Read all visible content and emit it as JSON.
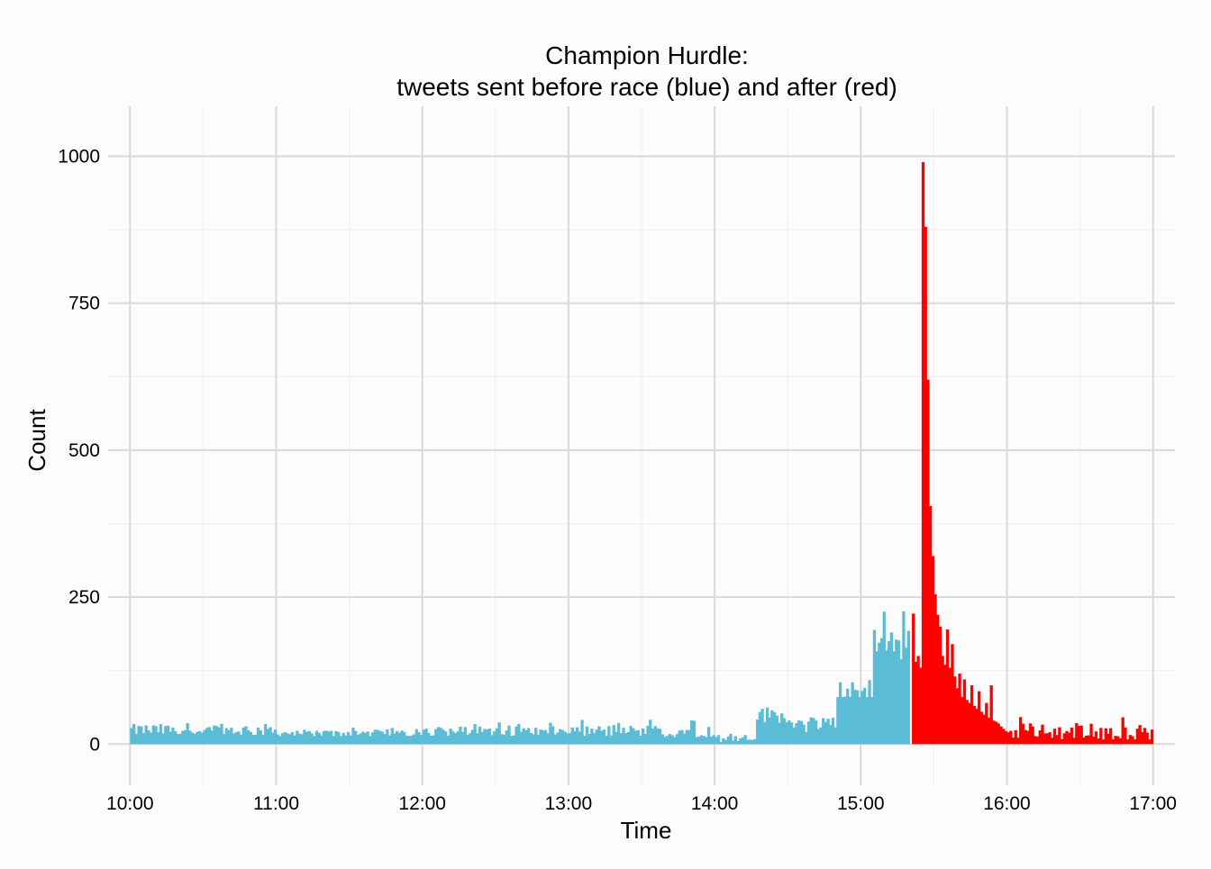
{
  "chart_data": {
    "type": "bar",
    "title_line1": "Champion Hurdle:",
    "title_line2": "tweets sent before race (blue) and after (red)",
    "xlabel": "Time",
    "ylabel": "Count",
    "xlim": [
      "09:51",
      "17:09"
    ],
    "ylim": [
      -70,
      1085
    ],
    "x_ticks": [
      "10:00",
      "11:00",
      "12:00",
      "13:00",
      "14:00",
      "15:00",
      "16:00",
      "17:00"
    ],
    "y_ticks": [
      0,
      250,
      500,
      750,
      1000
    ],
    "grid": true,
    "bin_minutes": 1,
    "colors": {
      "before": "#5bbcd6",
      "after": "#ff0000",
      "grid_major": "#d9d9d9",
      "grid_minor": "#efefef",
      "background": "#fcfcfc"
    },
    "series": [
      {
        "name": "before",
        "start_time": "10:00",
        "end_time": "15:20",
        "segments": [
          {
            "from": "10:00",
            "to": "11:00",
            "min": 15,
            "max": 45,
            "mean": 24
          },
          {
            "from": "11:00",
            "to": "12:00",
            "min": 12,
            "max": 28,
            "mean": 19
          },
          {
            "from": "12:00",
            "to": "13:00",
            "min": 14,
            "max": 38,
            "mean": 22
          },
          {
            "from": "13:00",
            "to": "14:00",
            "min": 12,
            "max": 42,
            "mean": 22
          },
          {
            "from": "14:00",
            "to": "14:17",
            "min": 3,
            "max": 20,
            "mean": 10
          },
          {
            "from": "14:17",
            "to": "14:30",
            "min": 30,
            "max": 70,
            "mean": 50
          },
          {
            "from": "14:30",
            "to": "14:50",
            "min": 20,
            "max": 50,
            "mean": 35
          },
          {
            "from": "14:50",
            "to": "15:05",
            "min": 80,
            "max": 120,
            "mean": 92
          },
          {
            "from": "15:05",
            "to": "15:20",
            "min": 130,
            "max": 230,
            "mean": 170
          }
        ]
      },
      {
        "name": "after",
        "start_time": "15:21",
        "end_time": "17:00",
        "points": [
          {
            "time": "15:21",
            "value": 222
          },
          {
            "time": "15:22",
            "value": 140
          },
          {
            "time": "15:23",
            "value": 150
          },
          {
            "time": "15:24",
            "value": 130
          },
          {
            "time": "15:25",
            "value": 990
          },
          {
            "time": "15:26",
            "value": 880
          },
          {
            "time": "15:27",
            "value": 620
          },
          {
            "time": "15:28",
            "value": 405
          },
          {
            "time": "15:29",
            "value": 320
          },
          {
            "time": "15:30",
            "value": 255
          },
          {
            "time": "15:31",
            "value": 220
          },
          {
            "time": "15:32",
            "value": 200
          },
          {
            "time": "15:33",
            "value": 150
          },
          {
            "time": "15:34",
            "value": 135
          },
          {
            "time": "15:35",
            "value": 195
          },
          {
            "time": "15:36",
            "value": 130
          },
          {
            "time": "15:37",
            "value": 170
          },
          {
            "time": "15:38",
            "value": 115
          },
          {
            "time": "15:39",
            "value": 95
          },
          {
            "time": "15:40",
            "value": 120
          },
          {
            "time": "15:41",
            "value": 80
          },
          {
            "time": "15:42",
            "value": 110
          },
          {
            "time": "15:43",
            "value": 75
          },
          {
            "time": "15:44",
            "value": 70
          },
          {
            "time": "15:45",
            "value": 100
          },
          {
            "time": "15:46",
            "value": 65
          },
          {
            "time": "15:47",
            "value": 60
          },
          {
            "time": "15:48",
            "value": 90
          },
          {
            "time": "15:49",
            "value": 55
          },
          {
            "time": "15:50",
            "value": 50
          },
          {
            "time": "15:51",
            "value": 70
          },
          {
            "time": "15:52",
            "value": 45
          },
          {
            "time": "15:53",
            "value": 100
          },
          {
            "time": "15:54",
            "value": 40
          },
          {
            "time": "15:55",
            "value": 38
          },
          {
            "time": "15:56",
            "value": 35
          },
          {
            "time": "15:57",
            "value": 30
          },
          {
            "time": "15:58",
            "value": 26
          },
          {
            "time": "15:59",
            "value": 22
          },
          {
            "time": "16:00",
            "value": 20
          }
        ],
        "tail": {
          "from": "16:01",
          "to": "17:00",
          "min": 8,
          "max": 48,
          "mean": 20
        }
      }
    ]
  }
}
